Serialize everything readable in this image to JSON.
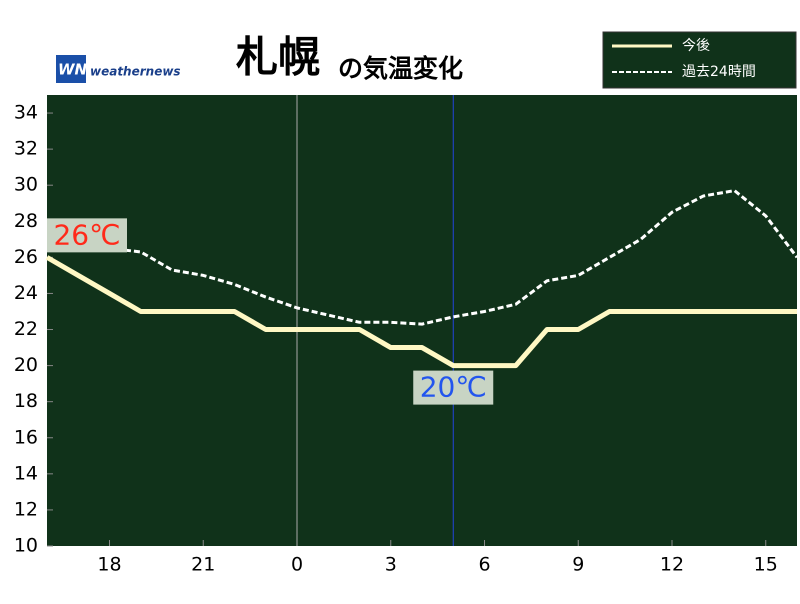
{
  "chart_data": {
    "type": "line",
    "title": "札幌",
    "subtitle": "の気温変化",
    "brand": "weathernews",
    "x": [
      16,
      17,
      18,
      19,
      20,
      21,
      22,
      23,
      24,
      25,
      26,
      27,
      28,
      29,
      30,
      31,
      32,
      33,
      34,
      35,
      36,
      37,
      38,
      39,
      40
    ],
    "xlim": [
      16,
      40
    ],
    "xticks": [
      {
        "value": 18,
        "label": "18"
      },
      {
        "value": 21,
        "label": "21"
      },
      {
        "value": 24,
        "label": "0"
      },
      {
        "value": 27,
        "label": "3"
      },
      {
        "value": 30,
        "label": "6"
      },
      {
        "value": 33,
        "label": "9"
      },
      {
        "value": 36,
        "label": "12"
      },
      {
        "value": 39,
        "label": "15"
      }
    ],
    "ylim": [
      10,
      35
    ],
    "yticks": [
      10,
      12,
      14,
      16,
      18,
      20,
      22,
      24,
      26,
      28,
      30,
      32,
      34
    ],
    "series": [
      {
        "name": "今後",
        "color": "#fff8c4",
        "dashed": false,
        "values": [
          26,
          25,
          24,
          23,
          23,
          23,
          23,
          22,
          22,
          22,
          22,
          21,
          21,
          20,
          20,
          20,
          22,
          22,
          23,
          23,
          23,
          23,
          23,
          23,
          23
        ]
      },
      {
        "name": "過去24時間",
        "color": "#ffffff",
        "dashed": true,
        "values": [
          27.5,
          26.8,
          26.5,
          26.3,
          25.3,
          25.0,
          24.5,
          23.8,
          23.2,
          22.8,
          22.4,
          22.4,
          22.3,
          22.7,
          23.0,
          23.4,
          24.7,
          25.0,
          26.0,
          27.0,
          28.5,
          29.4,
          29.7,
          28.3,
          26.0
        ]
      }
    ],
    "vlines": [
      {
        "x": 24,
        "color": "#aaaaaa"
      },
      {
        "x": 29,
        "color": "#2244dd"
      }
    ],
    "annotations": [
      {
        "text": "26℃",
        "x": 16,
        "y": 26,
        "color": "#ff2a1a"
      },
      {
        "text": "20℃",
        "x": 29,
        "y": 20,
        "color": "#2255ee"
      }
    ]
  }
}
